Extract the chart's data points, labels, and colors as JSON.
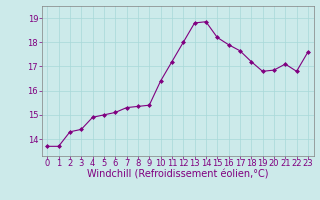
{
  "x": [
    0,
    1,
    2,
    3,
    4,
    5,
    6,
    7,
    8,
    9,
    10,
    11,
    12,
    13,
    14,
    15,
    16,
    17,
    18,
    19,
    20,
    21,
    22,
    23
  ],
  "y": [
    13.7,
    13.7,
    14.3,
    14.4,
    14.9,
    15.0,
    15.1,
    15.3,
    15.35,
    15.4,
    16.4,
    17.2,
    18.0,
    18.8,
    18.85,
    18.2,
    17.9,
    17.65,
    17.2,
    16.8,
    16.85,
    17.1,
    16.8,
    17.6
  ],
  "line_color": "#800080",
  "marker": "D",
  "marker_size": 2.0,
  "xlabel": "Windchill (Refroidissement éolien,°C)",
  "xlabel_fontsize": 7.0,
  "ylabel_ticks": [
    14,
    15,
    16,
    17,
    18,
    19
  ],
  "ylim": [
    13.3,
    19.5
  ],
  "xlim": [
    -0.5,
    23.5
  ],
  "grid_color": "#a8d8d8",
  "bg_color": "#cceaea",
  "tick_color": "#800080",
  "tick_fontsize": 6.0,
  "line_width": 0.8
}
